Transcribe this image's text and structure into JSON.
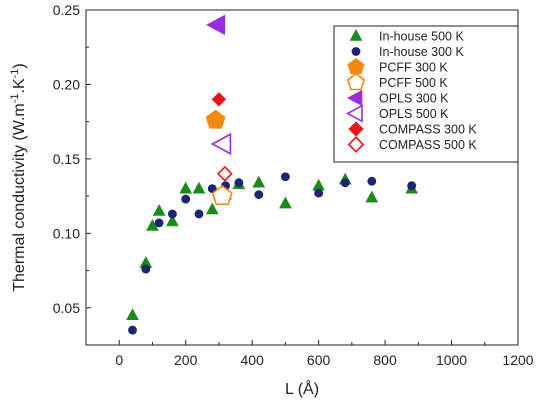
{
  "chart_data": {
    "type": "scatter",
    "xlabel": "L (Å)",
    "ylabel": "Thermal conductivity (W.m-1.K-1)",
    "ylabel_parts": {
      "base": "Thermal conductivity (W.m",
      "exp1": "-1",
      "mid": ".K",
      "exp2": "-1",
      "end": ")"
    },
    "xlim": [
      -100,
      1200
    ],
    "ylim": [
      0.025,
      0.25
    ],
    "xticks": [
      0,
      200,
      400,
      600,
      800,
      1000,
      1200
    ],
    "yticks": [
      0.05,
      0.1,
      0.15,
      0.2,
      0.25
    ],
    "ytick_labels": [
      "0.05",
      "0.10",
      "0.15",
      "0.20",
      "0.25"
    ],
    "legend_position": "top-right",
    "series": [
      {
        "name": "In-house 500 K",
        "marker": "triangle",
        "filled": true,
        "color": "#1a8a1a",
        "points": [
          [
            40,
            0.045
          ],
          [
            80,
            0.08
          ],
          [
            100,
            0.105
          ],
          [
            120,
            0.115
          ],
          [
            160,
            0.108
          ],
          [
            200,
            0.13
          ],
          [
            240,
            0.13
          ],
          [
            280,
            0.116
          ],
          [
            320,
            0.126
          ],
          [
            360,
            0.133
          ],
          [
            420,
            0.134
          ],
          [
            500,
            0.12
          ],
          [
            600,
            0.132
          ],
          [
            680,
            0.136
          ],
          [
            760,
            0.124
          ],
          [
            880,
            0.13
          ]
        ]
      },
      {
        "name": "In-house 300 K",
        "marker": "circle",
        "filled": true,
        "color": "#1c2473",
        "points": [
          [
            40,
            0.035
          ],
          [
            80,
            0.076
          ],
          [
            120,
            0.107
          ],
          [
            160,
            0.113
          ],
          [
            200,
            0.123
          ],
          [
            240,
            0.113
          ],
          [
            280,
            0.13
          ],
          [
            320,
            0.132
          ],
          [
            360,
            0.134
          ],
          [
            420,
            0.126
          ],
          [
            500,
            0.138
          ],
          [
            600,
            0.127
          ],
          [
            680,
            0.134
          ],
          [
            760,
            0.135
          ],
          [
            880,
            0.132
          ]
        ]
      },
      {
        "name": "PCFF 300 K",
        "marker": "pentagon",
        "filled": true,
        "color": "#f28a0f",
        "points": [
          [
            290,
            0.176
          ]
        ]
      },
      {
        "name": "PCFF 500 K",
        "marker": "pentagon",
        "filled": false,
        "color": "#f28a0f",
        "points": [
          [
            310,
            0.125
          ]
        ]
      },
      {
        "name": "OPLS 300 K",
        "marker": "triangle-left",
        "filled": true,
        "color": "#9b2fe0",
        "points": [
          [
            295,
            0.24
          ]
        ]
      },
      {
        "name": "OPLS 500 K",
        "marker": "triangle-left",
        "filled": false,
        "color": "#9b2fe0",
        "points": [
          [
            312,
            0.16
          ]
        ]
      },
      {
        "name": "COMPASS 300 K",
        "marker": "diamond",
        "filled": true,
        "color": "#e8161c",
        "points": [
          [
            300,
            0.19
          ]
        ]
      },
      {
        "name": "COMPASS 500 K",
        "marker": "diamond",
        "filled": false,
        "color": "#e8161c",
        "points": [
          [
            318,
            0.14
          ]
        ]
      }
    ]
  }
}
